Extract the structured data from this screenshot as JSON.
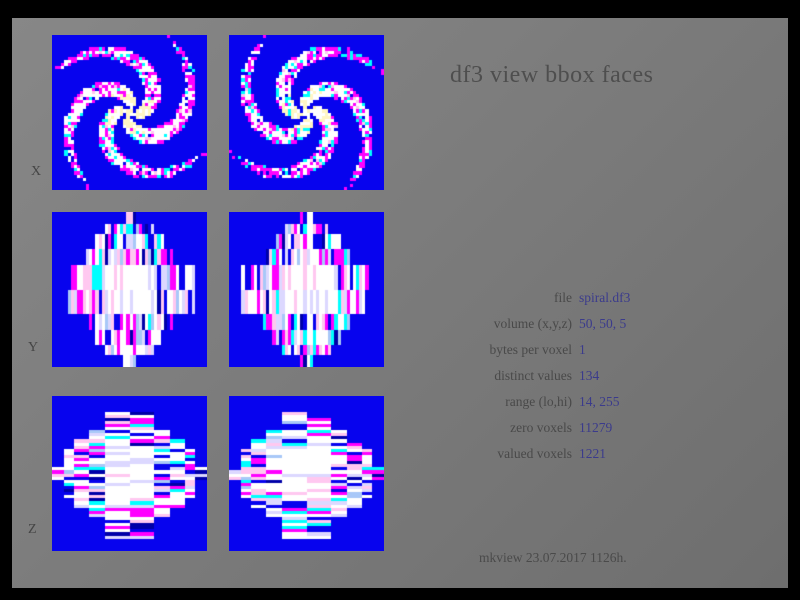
{
  "title": "df3 view bbox faces",
  "axes": [
    {
      "label": "X"
    },
    {
      "label": "Y"
    },
    {
      "label": "Z"
    }
  ],
  "info": {
    "rows": [
      {
        "label": "file",
        "value": "spiral.df3"
      },
      {
        "label": "volume (x,y,z)",
        "value": "50, 50, 5"
      },
      {
        "label": "bytes per voxel",
        "value": "1"
      },
      {
        "label": "distinct values",
        "value": "134"
      },
      {
        "label": "range (lo,hi)",
        "value": "14, 255"
      },
      {
        "label": "zero voxels",
        "value": "11279"
      },
      {
        "label": "valued voxels",
        "value": "1221"
      }
    ]
  },
  "footer": "mkview 23.07.2017 1126h.",
  "panels": [
    {
      "id": "p-x-left",
      "axis": "X",
      "pattern": "spiral",
      "mirror": false,
      "seed": 101
    },
    {
      "id": "p-x-right",
      "axis": "X",
      "pattern": "spiral",
      "mirror": true,
      "seed": 208
    },
    {
      "id": "p-y-left",
      "axis": "Y",
      "pattern": "stripes-v",
      "mirror": false,
      "seed": 303
    },
    {
      "id": "p-y-right",
      "axis": "Y",
      "pattern": "stripes-v",
      "mirror": true,
      "seed": 404
    },
    {
      "id": "p-z-left",
      "axis": "Z",
      "pattern": "stripes-h",
      "mirror": false,
      "seed": 505
    },
    {
      "id": "p-z-right",
      "axis": "Z",
      "pattern": "stripes-h",
      "mirror": true,
      "seed": 606
    }
  ],
  "colors": {
    "frame": "#000000",
    "canvas_gray": "#7c7c7c",
    "panel_blue": "#0703EE",
    "white": "#FFFFFF",
    "magenta": "#FF00FF",
    "cyan": "#00FFFF",
    "pink": "#FFC8F0",
    "cream": "#FFF6C4",
    "lavender": "#DCD8FF",
    "lightblue": "#A8C8F8",
    "navy": "#0000A8",
    "title_text": "#4e4e4e",
    "label_text": "#494949",
    "value_text": "#3b3b8c"
  }
}
